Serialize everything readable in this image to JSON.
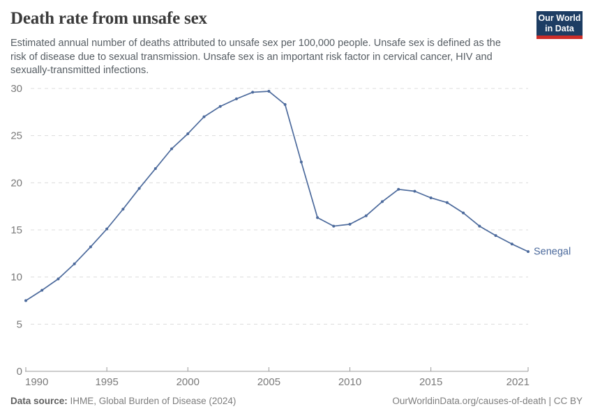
{
  "header": {
    "title": "Death rate from unsafe sex",
    "subtitle_lines": [
      "Estimated annual number of deaths attributed to unsafe sex per 100,000 people. Unsafe sex is defined as the",
      "risk of disease due to sexual transmission. Unsafe sex is an important risk factor in cervical cancer, HIV and",
      "sexually-transmitted infections."
    ],
    "logo_line1": "Our World",
    "logo_line2": "in Data"
  },
  "chart_data": {
    "type": "line",
    "title": "Death rate from unsafe sex",
    "xlabel": "",
    "ylabel": "",
    "xlim": [
      1990,
      2021
    ],
    "ylim": [
      0,
      30
    ],
    "grid": "horizontal-dashed",
    "x_ticks": [
      1990,
      1995,
      2000,
      2005,
      2010,
      2015,
      2021
    ],
    "y_ticks": [
      0,
      5,
      10,
      15,
      20,
      25,
      30
    ],
    "end_label": "Senegal",
    "series": [
      {
        "name": "Senegal",
        "color": "#4c6a9c",
        "x": [
          1990,
          1991,
          1992,
          1993,
          1994,
          1995,
          1996,
          1997,
          1998,
          1999,
          2000,
          2001,
          2002,
          2003,
          2004,
          2005,
          2006,
          2007,
          2008,
          2009,
          2010,
          2011,
          2012,
          2013,
          2014,
          2015,
          2016,
          2017,
          2018,
          2019,
          2020,
          2021
        ],
        "values": [
          7.5,
          8.6,
          9.8,
          11.4,
          13.2,
          15.1,
          17.2,
          19.4,
          21.5,
          23.6,
          25.2,
          27.0,
          28.1,
          28.9,
          29.6,
          29.7,
          28.3,
          22.2,
          16.3,
          15.4,
          15.6,
          16.5,
          18.0,
          19.3,
          19.1,
          18.4,
          17.9,
          16.8,
          15.4,
          14.4,
          13.5,
          12.7
        ]
      }
    ]
  },
  "footer": {
    "source_label": "Data source:",
    "source_value": " IHME, Global Burden of Disease (2024)",
    "credit": "OurWorldinData.org/causes-of-death | CC BY"
  },
  "colors": {
    "line": "#4c6a9c",
    "gridline": "#dcdcdc",
    "axis_line": "#9a9a9a",
    "axis_text": "#7a7a7a",
    "logo_bg": "#1d3d63",
    "logo_red": "#cd2d28"
  }
}
